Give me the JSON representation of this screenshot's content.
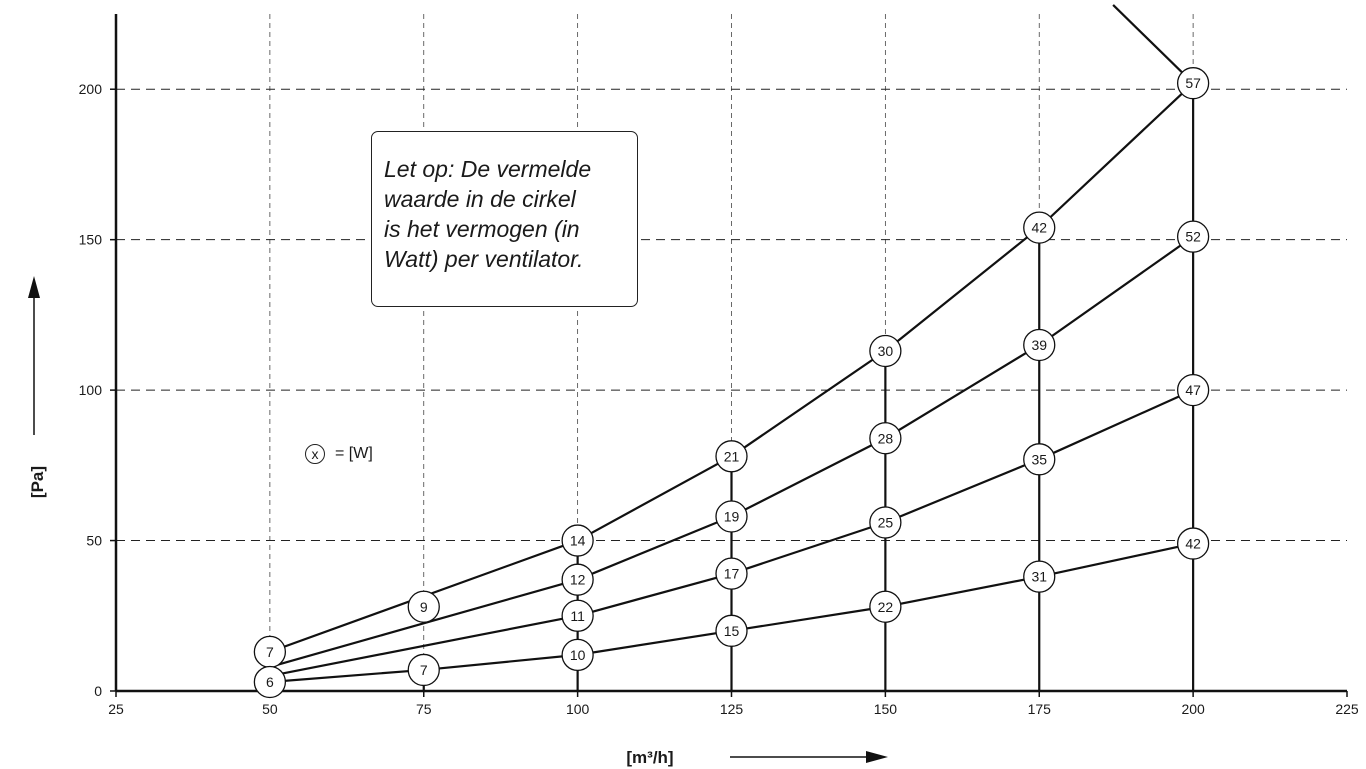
{
  "chart_data": {
    "type": "line",
    "xlabel": "[m³/h]",
    "ylabel": "[Pa]",
    "xlim": [
      25,
      225
    ],
    "ylim": [
      0,
      225
    ],
    "xticks": [
      25,
      50,
      75,
      100,
      125,
      150,
      175,
      200,
      225
    ],
    "yticks": [
      0,
      50,
      100,
      150,
      200
    ],
    "grid": true,
    "series": [
      {
        "x": [
          50,
          100,
          125,
          150,
          175,
          200
        ],
        "y": [
          13,
          50,
          78,
          113,
          154,
          202
        ],
        "power_w": [
          "7",
          "14",
          "21",
          "30",
          "42",
          "57"
        ]
      },
      {
        "x": [
          50,
          100,
          125,
          150,
          175,
          200
        ],
        "y": [
          8,
          37,
          58,
          84,
          115,
          151
        ],
        "power_w": [
          "",
          "12",
          "19",
          "28",
          "39",
          "52"
        ]
      },
      {
        "x": [
          50,
          100,
          125,
          150,
          175,
          200
        ],
        "y": [
          5,
          25,
          39,
          56,
          77,
          100
        ],
        "power_w": [
          "",
          "11",
          "17",
          "25",
          "35",
          "47"
        ]
      },
      {
        "x": [
          50,
          75,
          100,
          125,
          150,
          175,
          200
        ],
        "y": [
          3,
          7,
          12,
          20,
          28,
          38,
          49
        ],
        "power_w": [
          "6",
          "7",
          "10",
          "15",
          "22",
          "31",
          "42"
        ]
      }
    ],
    "extra_markers": [
      {
        "x": 75,
        "y": 28,
        "label": "9"
      }
    ],
    "limit_line": {
      "x": [
        187,
        200
      ],
      "y": [
        228,
        202
      ]
    },
    "vertical_lines_x": [
      75,
      100,
      125,
      150,
      175,
      200
    ],
    "annotation_lines": [
      "Let op: De vermelde",
      "waarde in de cirkel",
      "is het vermogen (in",
      "Watt) per ventilator."
    ],
    "legend": {
      "symbol": "x",
      "text": "= [W]"
    }
  }
}
